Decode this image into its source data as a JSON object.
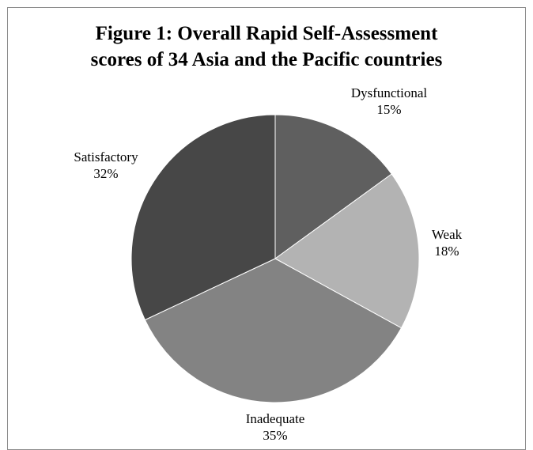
{
  "chart_data": {
    "type": "pie",
    "title_lines": [
      "Figure 1: Overall Rapid Self-Assessment",
      "scores of 34 Asia and the Pacific countries"
    ],
    "start_angle_deg": 0,
    "direction": "clockwise",
    "slices": [
      {
        "label": "Dysfunctional",
        "value": 15,
        "value_text": "15%",
        "color": "#5f5f5f"
      },
      {
        "label": "Weak",
        "value": 18,
        "value_text": "18%",
        "color": "#b3b3b3"
      },
      {
        "label": "Inadequate",
        "value": 35,
        "value_text": "35%",
        "color": "#838383"
      },
      {
        "label": "Satisfactory",
        "value": 32,
        "value_text": "32%",
        "color": "#474747"
      }
    ]
  }
}
